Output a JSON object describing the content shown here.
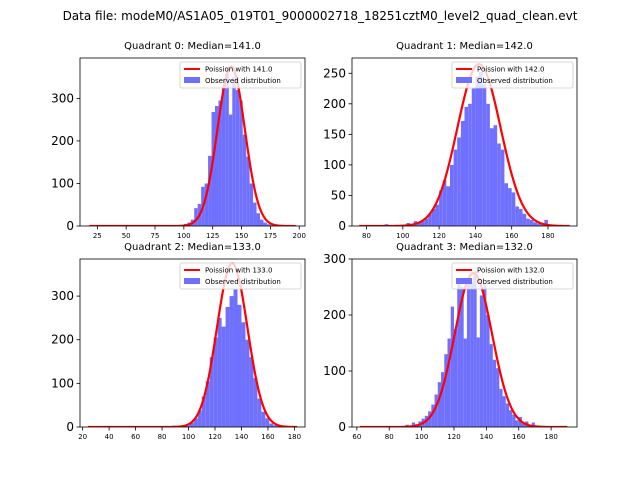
{
  "figure_title": "Data file: modeM0/AS1A05_019T01_9000002718_18251cztM0_level2_quad_clean.evt",
  "chart_data": [
    {
      "type": "bar",
      "title": "Quadrant 0: Median=141.0",
      "median": 141.0,
      "xlim": [
        10,
        205
      ],
      "ylim": [
        0,
        395
      ],
      "xticks": [
        25,
        50,
        75,
        100,
        125,
        150,
        175,
        200
      ],
      "yticks": [
        0,
        100,
        200,
        300
      ],
      "legend": {
        "position": "top-right",
        "line_label": "Poission with 141.0",
        "bar_label": "Observed distribution"
      },
      "bins": [
        {
          "x": 95,
          "y": 2
        },
        {
          "x": 100,
          "y": 5
        },
        {
          "x": 103,
          "y": 8
        },
        {
          "x": 106,
          "y": 15
        },
        {
          "x": 109,
          "y": 42
        },
        {
          "x": 112,
          "y": 52
        },
        {
          "x": 115,
          "y": 92
        },
        {
          "x": 118,
          "y": 100
        },
        {
          "x": 121,
          "y": 165
        },
        {
          "x": 124,
          "y": 268
        },
        {
          "x": 127,
          "y": 282
        },
        {
          "x": 130,
          "y": 295
        },
        {
          "x": 133,
          "y": 325
        },
        {
          "x": 136,
          "y": 358
        },
        {
          "x": 139,
          "y": 262
        },
        {
          "x": 142,
          "y": 350
        },
        {
          "x": 145,
          "y": 320
        },
        {
          "x": 148,
          "y": 295
        },
        {
          "x": 151,
          "y": 215
        },
        {
          "x": 154,
          "y": 163
        },
        {
          "x": 157,
          "y": 100
        },
        {
          "x": 160,
          "y": 55
        },
        {
          "x": 163,
          "y": 30
        },
        {
          "x": 166,
          "y": 15
        },
        {
          "x": 169,
          "y": 8
        },
        {
          "x": 172,
          "y": 4
        },
        {
          "x": 175,
          "y": 2
        },
        {
          "x": 178,
          "y": 1
        }
      ],
      "bin_width": 3,
      "curve": {
        "mu": 141.0,
        "peak": 375,
        "x_start": 18,
        "x_end": 197
      },
      "curve_color": "#ff0000",
      "bar_color": "#7070ff"
    },
    {
      "type": "bar",
      "title": "Quadrant 1: Median=142.0",
      "median": 142.0,
      "xlim": [
        72,
        196
      ],
      "ylim": [
        0,
        275
      ],
      "xticks": [
        80,
        100,
        120,
        140,
        160,
        180
      ],
      "yticks": [
        0,
        50,
        100,
        150,
        200,
        250
      ],
      "legend": {
        "position": "top-right",
        "line_label": "Poission with 142.0",
        "bar_label": "Observed distribution"
      },
      "bins": [
        {
          "x": 90,
          "y": 3
        },
        {
          "x": 100,
          "y": 2
        },
        {
          "x": 102,
          "y": 5
        },
        {
          "x": 104,
          "y": 2
        },
        {
          "x": 106,
          "y": 8
        },
        {
          "x": 108,
          "y": 6
        },
        {
          "x": 110,
          "y": 8
        },
        {
          "x": 112,
          "y": 12
        },
        {
          "x": 114,
          "y": 20
        },
        {
          "x": 116,
          "y": 28
        },
        {
          "x": 118,
          "y": 35
        },
        {
          "x": 120,
          "y": 58
        },
        {
          "x": 122,
          "y": 75
        },
        {
          "x": 124,
          "y": 65
        },
        {
          "x": 126,
          "y": 100
        },
        {
          "x": 128,
          "y": 125
        },
        {
          "x": 130,
          "y": 145
        },
        {
          "x": 132,
          "y": 172
        },
        {
          "x": 134,
          "y": 195
        },
        {
          "x": 136,
          "y": 200
        },
        {
          "x": 138,
          "y": 225
        },
        {
          "x": 140,
          "y": 245
        },
        {
          "x": 142,
          "y": 252
        },
        {
          "x": 144,
          "y": 232
        },
        {
          "x": 146,
          "y": 200
        },
        {
          "x": 148,
          "y": 160
        },
        {
          "x": 150,
          "y": 165
        },
        {
          "x": 152,
          "y": 135
        },
        {
          "x": 154,
          "y": 125
        },
        {
          "x": 156,
          "y": 70
        },
        {
          "x": 158,
          "y": 62
        },
        {
          "x": 160,
          "y": 55
        },
        {
          "x": 162,
          "y": 32
        },
        {
          "x": 164,
          "y": 28
        },
        {
          "x": 166,
          "y": 20
        },
        {
          "x": 168,
          "y": 12
        },
        {
          "x": 170,
          "y": 10
        },
        {
          "x": 172,
          "y": 6
        },
        {
          "x": 174,
          "y": 4
        },
        {
          "x": 176,
          "y": 3
        },
        {
          "x": 178,
          "y": 10
        }
      ],
      "bin_width": 2,
      "curve": {
        "mu": 142.0,
        "peak": 265,
        "x_start": 76,
        "x_end": 192
      },
      "curve_color": "#ff0000",
      "bar_color": "#7070ff"
    },
    {
      "type": "bar",
      "title": "Quadrant 2: Median=133.0",
      "median": 133.0,
      "xlim": [
        18,
        188
      ],
      "ylim": [
        0,
        385
      ],
      "xticks": [
        20,
        40,
        60,
        80,
        100,
        120,
        140,
        160,
        180
      ],
      "yticks": [
        0,
        100,
        200,
        300
      ],
      "legend": {
        "position": "top-right",
        "line_label": "Poission with 133.0",
        "bar_label": "Observed distribution"
      },
      "bins": [
        {
          "x": 88,
          "y": 3
        },
        {
          "x": 95,
          "y": 2
        },
        {
          "x": 98,
          "y": 4
        },
        {
          "x": 101,
          "y": 10
        },
        {
          "x": 104,
          "y": 20
        },
        {
          "x": 107,
          "y": 38
        },
        {
          "x": 110,
          "y": 70
        },
        {
          "x": 113,
          "y": 105
        },
        {
          "x": 116,
          "y": 160
        },
        {
          "x": 119,
          "y": 205
        },
        {
          "x": 122,
          "y": 250
        },
        {
          "x": 125,
          "y": 230
        },
        {
          "x": 128,
          "y": 275
        },
        {
          "x": 131,
          "y": 300
        },
        {
          "x": 134,
          "y": 315
        },
        {
          "x": 137,
          "y": 280
        },
        {
          "x": 140,
          "y": 240
        },
        {
          "x": 143,
          "y": 200
        },
        {
          "x": 146,
          "y": 160
        },
        {
          "x": 149,
          "y": 112
        },
        {
          "x": 152,
          "y": 65
        },
        {
          "x": 155,
          "y": 35
        },
        {
          "x": 158,
          "y": 20
        },
        {
          "x": 161,
          "y": 8
        },
        {
          "x": 164,
          "y": 4
        },
        {
          "x": 167,
          "y": 2
        }
      ],
      "bin_width": 3,
      "curve": {
        "mu": 133.0,
        "peak": 375,
        "x_start": 24,
        "x_end": 182
      },
      "curve_color": "#ff0000",
      "bar_color": "#7070ff"
    },
    {
      "type": "bar",
      "title": "Quadrant 3: Median=132.0",
      "median": 132.0,
      "xlim": [
        57,
        196
      ],
      "ylim": [
        0,
        300
      ],
      "xticks": [
        60,
        80,
        100,
        120,
        140,
        160,
        180
      ],
      "yticks": [
        0,
        100,
        200,
        300
      ],
      "legend": {
        "position": "top-right",
        "line_label": "Poission with 132.0",
        "bar_label": "Observed distribution"
      },
      "bins": [
        {
          "x": 90,
          "y": 4
        },
        {
          "x": 94,
          "y": 8
        },
        {
          "x": 96,
          "y": 5
        },
        {
          "x": 98,
          "y": 10
        },
        {
          "x": 100,
          "y": 15
        },
        {
          "x": 102,
          "y": 20
        },
        {
          "x": 104,
          "y": 28
        },
        {
          "x": 106,
          "y": 40
        },
        {
          "x": 108,
          "y": 58
        },
        {
          "x": 110,
          "y": 80
        },
        {
          "x": 112,
          "y": 98
        },
        {
          "x": 114,
          "y": 130
        },
        {
          "x": 116,
          "y": 158
        },
        {
          "x": 118,
          "y": 215
        },
        {
          "x": 120,
          "y": 175
        },
        {
          "x": 122,
          "y": 255
        },
        {
          "x": 124,
          "y": 250
        },
        {
          "x": 126,
          "y": 158
        },
        {
          "x": 128,
          "y": 265
        },
        {
          "x": 130,
          "y": 258
        },
        {
          "x": 132,
          "y": 278
        },
        {
          "x": 134,
          "y": 160
        },
        {
          "x": 136,
          "y": 235
        },
        {
          "x": 138,
          "y": 255
        },
        {
          "x": 140,
          "y": 200
        },
        {
          "x": 142,
          "y": 148
        },
        {
          "x": 144,
          "y": 120
        },
        {
          "x": 146,
          "y": 105
        },
        {
          "x": 148,
          "y": 68
        },
        {
          "x": 150,
          "y": 55
        },
        {
          "x": 152,
          "y": 42
        },
        {
          "x": 154,
          "y": 30
        },
        {
          "x": 156,
          "y": 22
        },
        {
          "x": 158,
          "y": 12
        },
        {
          "x": 160,
          "y": 18
        },
        {
          "x": 162,
          "y": 6
        },
        {
          "x": 164,
          "y": 10
        },
        {
          "x": 166,
          "y": 4
        },
        {
          "x": 168,
          "y": 8
        },
        {
          "x": 170,
          "y": 3
        },
        {
          "x": 172,
          "y": 2
        },
        {
          "x": 174,
          "y": 2
        }
      ],
      "bin_width": 2,
      "curve": {
        "mu": 132.0,
        "peak": 275,
        "x_start": 62,
        "x_end": 190
      },
      "curve_color": "#ff0000",
      "bar_color": "#7070ff"
    }
  ]
}
